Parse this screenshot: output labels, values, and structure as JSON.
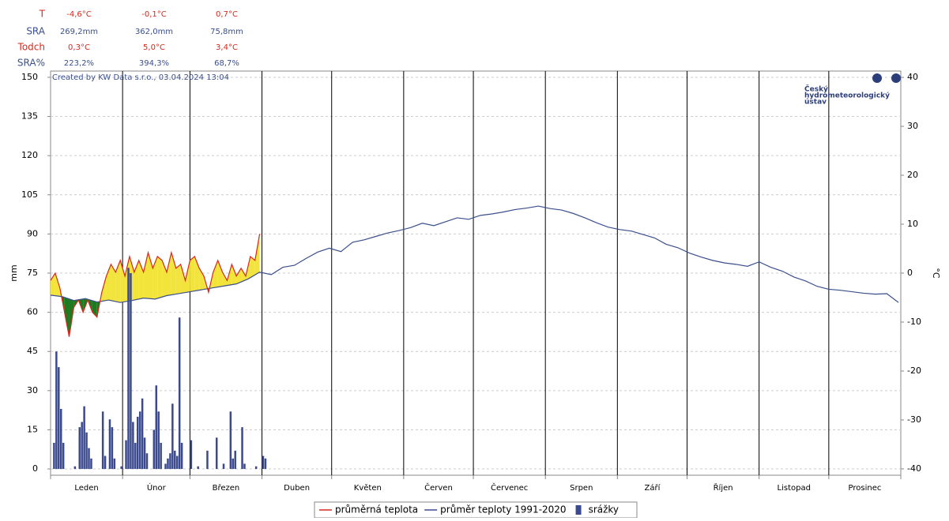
{
  "summary": {
    "rows": [
      {
        "label": "T",
        "values": [
          "-4,6°C",
          "-0,1°C",
          "0,7°C"
        ]
      },
      {
        "label": "SRA",
        "values": [
          "269,2mm",
          "362,0mm",
          "75,8mm"
        ]
      },
      {
        "label": "Todch",
        "values": [
          "0,3°C",
          "5,0°C",
          "3,4°C"
        ]
      },
      {
        "label": "SRA%",
        "values": [
          "223,2%",
          "394,3%",
          "68,7%"
        ]
      }
    ]
  },
  "logo": [
    "Český",
    "hydrometeorologický",
    "ústav"
  ],
  "chart_data": {
    "type": "combo",
    "annotation": "Created by KW Data s.r.o., 03.04.2024 13:04",
    "ylabel": "mm",
    "y2label": "°C",
    "categories": [
      "Leden",
      "Únor",
      "Březen",
      "Duben",
      "Květen",
      "Červen",
      "Červenec",
      "Srpen",
      "Září",
      "Říjen",
      "Listopad",
      "Prosinec"
    ],
    "xlim": [
      0,
      366
    ],
    "xticks": [
      0,
      31,
      60,
      91,
      121,
      152,
      182,
      213,
      244,
      274,
      305,
      335,
      366
    ],
    "ylim": [
      -2.4,
      152.4
    ],
    "yticks": [
      0,
      15,
      30,
      45,
      60,
      75,
      90,
      105,
      120,
      135,
      150
    ],
    "y2lim": [
      -41.3,
      41.3
    ],
    "y2ticks": [
      -40,
      -30,
      -20,
      -10,
      0,
      10,
      20,
      30,
      40
    ],
    "grid": true,
    "series": [
      {
        "name": "průměrná teplota",
        "type": "line",
        "axis": "y2",
        "color": "#d42a1e",
        "x": [
          0,
          2,
          4,
          6,
          8,
          10,
          12,
          14,
          16,
          18,
          20,
          22,
          24,
          26,
          28,
          30,
          32,
          34,
          36,
          38,
          40,
          42,
          44,
          46,
          48,
          50,
          52,
          54,
          56,
          58,
          60,
          62,
          64,
          66,
          68,
          70,
          72,
          74,
          76,
          78,
          80,
          82,
          84,
          86,
          88,
          90
        ],
        "values": [
          -1.5,
          0,
          -3,
          -8,
          -13,
          -7,
          -5.5,
          -8,
          -5.5,
          -8,
          -9,
          -4,
          -0.6,
          1.8,
          0.2,
          2.6,
          -0.6,
          3.4,
          0.2,
          2.6,
          0.2,
          4.2,
          1,
          3.4,
          2.6,
          0.2,
          4.2,
          1,
          1.8,
          -1.5,
          2.6,
          3.4,
          1,
          -0.6,
          -3.9,
          0.2,
          2.6,
          0.2,
          -1.5,
          1.8,
          -0.6,
          1,
          -0.6,
          3.4,
          2.6,
          8
        ]
      },
      {
        "name": "průměr teploty 1991-2020",
        "type": "line",
        "axis": "y2",
        "color": "#3a4f8c",
        "x": [
          0,
          5,
          10,
          15,
          20,
          25,
          30,
          35,
          40,
          45,
          50,
          55,
          60,
          65,
          70,
          75,
          80,
          85,
          90,
          95,
          100,
          105,
          110,
          115,
          120,
          125,
          130,
          135,
          140,
          145,
          150,
          155,
          160,
          165,
          170,
          175,
          180,
          185,
          190,
          195,
          200,
          205,
          210,
          215,
          220,
          225,
          230,
          235,
          240,
          245,
          250,
          255,
          260,
          265,
          270,
          275,
          280,
          285,
          290,
          295,
          300,
          305,
          310,
          315,
          320,
          325,
          330,
          335,
          340,
          345,
          350,
          355,
          360,
          365
        ],
        "values": [
          -4.5,
          -4.8,
          -5.6,
          -5.2,
          -5.9,
          -5.5,
          -6.0,
          -5.6,
          -5.1,
          -5.3,
          -4.6,
          -4.2,
          -3.8,
          -3.4,
          -3.0,
          -2.6,
          -2.2,
          -1.2,
          0.2,
          -0.3,
          1.2,
          1.6,
          3.0,
          4.3,
          5.1,
          4.4,
          6.3,
          6.8,
          7.5,
          8.2,
          8.7,
          9.3,
          10.2,
          9.7,
          10.5,
          11.3,
          11.0,
          11.8,
          12.1,
          12.5,
          13.0,
          13.3,
          13.7,
          13.2,
          12.9,
          12.2,
          11.3,
          10.3,
          9.4,
          8.9,
          8.6,
          7.9,
          7.2,
          5.9,
          5.2,
          4.1,
          3.3,
          2.6,
          2.1,
          1.8,
          1.4,
          2.3,
          1.2,
          0.4,
          -0.8,
          -1.6,
          -2.7,
          -3.3,
          -3.5,
          -3.8,
          -4.1,
          -4.3,
          -4.2,
          -6.0
        ]
      },
      {
        "name": "srážky",
        "type": "bar",
        "axis": "y",
        "color": "#3b4a8f",
        "x": [
          1,
          2,
          3,
          4,
          5,
          10,
          12,
          13,
          14,
          15,
          16,
          17,
          22,
          23,
          25,
          26,
          27,
          30,
          32,
          33,
          34,
          35,
          36,
          37,
          38,
          39,
          40,
          41,
          44,
          45,
          46,
          47,
          49,
          50,
          51,
          52,
          53,
          54,
          55,
          56,
          60,
          63,
          67,
          71,
          74,
          77,
          78,
          79,
          82,
          83,
          88,
          91,
          92
        ],
        "values": [
          10,
          45,
          39,
          23,
          10,
          1,
          16,
          18,
          24,
          14,
          8,
          4,
          22,
          5,
          19,
          16,
          4,
          1,
          11,
          77,
          75,
          18,
          10,
          20,
          22,
          27,
          12,
          6,
          15,
          32,
          22,
          10,
          2,
          4,
          6,
          25,
          7,
          5,
          58,
          10,
          11,
          1,
          7,
          12,
          2,
          22,
          4,
          7,
          16,
          2,
          1,
          5,
          4
        ]
      }
    ]
  }
}
